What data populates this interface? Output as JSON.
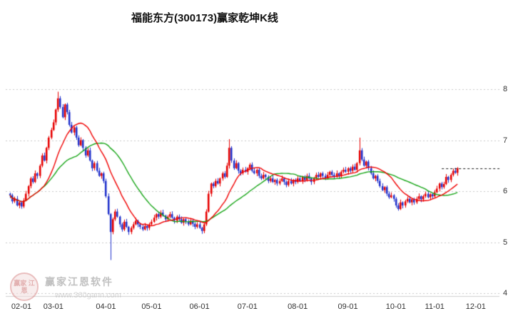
{
  "title": "福能东方(300173)赢家乾坤K线",
  "watermark": {
    "logo_text": "赢家 江恩",
    "brand": "赢家江恩软件",
    "url": "www.360gann.com"
  },
  "chart_data": {
    "type": "candlestick",
    "title": "福能东方(300173)赢家乾坤K线",
    "symbol": "福能东方",
    "code": "300173",
    "legend_position": "none",
    "grid": "horizontal-dotted",
    "y_axis": {
      "ticks": [
        8,
        7,
        6,
        5,
        4
      ],
      "range": [
        4,
        8.8
      ],
      "side": "right"
    },
    "x_axis": {
      "ticks": [
        {
          "label": "02-01",
          "i": 0
        },
        {
          "label": "03-01",
          "i": 19
        },
        {
          "label": "04-01",
          "i": 42
        },
        {
          "label": "05-01",
          "i": 62
        },
        {
          "label": "06-01",
          "i": 83
        },
        {
          "label": "07-01",
          "i": 104
        },
        {
          "label": "08-01",
          "i": 126
        },
        {
          "label": "09-01",
          "i": 148
        },
        {
          "label": "10-01",
          "i": 169
        },
        {
          "label": "11-01",
          "i": 186
        },
        {
          "label": "12-01",
          "i": 204
        }
      ]
    },
    "first_open": 5.95,
    "closes": [
      5.92,
      5.8,
      5.85,
      5.72,
      5.78,
      5.7,
      5.82,
      5.95,
      6.1,
      6.25,
      6.18,
      6.35,
      6.3,
      6.5,
      6.7,
      6.6,
      6.85,
      7.05,
      7.2,
      7.35,
      7.6,
      7.82,
      7.65,
      7.45,
      7.7,
      7.55,
      7.3,
      7.15,
      7.25,
      7.05,
      6.9,
      7.0,
      6.85,
      6.7,
      6.8,
      6.6,
      6.45,
      6.55,
      6.4,
      6.3,
      6.35,
      6.2,
      5.9,
      5.55,
      5.2,
      5.45,
      5.6,
      5.5,
      5.35,
      5.25,
      5.4,
      5.3,
      5.2,
      5.28,
      5.35,
      5.42,
      5.35,
      5.3,
      5.25,
      5.32,
      5.28,
      5.35,
      5.4,
      5.48,
      5.55,
      5.5,
      5.58,
      5.52,
      5.45,
      5.5,
      5.55,
      5.48,
      5.42,
      5.5,
      5.45,
      5.38,
      5.45,
      5.4,
      5.35,
      5.42,
      5.36,
      5.3,
      5.35,
      5.28,
      5.22,
      5.35,
      5.6,
      5.95,
      6.15,
      6.1,
      6.2,
      6.15,
      6.25,
      6.35,
      6.28,
      6.5,
      6.85,
      6.6,
      6.45,
      6.55,
      6.4,
      6.35,
      6.42,
      6.38,
      6.45,
      6.52,
      6.4,
      6.35,
      6.42,
      6.3,
      6.25,
      6.32,
      6.28,
      6.2,
      6.25,
      6.18,
      6.22,
      6.15,
      6.2,
      6.25,
      6.18,
      6.12,
      6.2,
      6.15,
      6.22,
      6.18,
      6.25,
      6.2,
      6.28,
      6.22,
      6.3,
      6.25,
      6.18,
      6.25,
      6.32,
      6.28,
      6.35,
      6.3,
      6.25,
      6.32,
      6.38,
      6.32,
      6.28,
      6.35,
      6.3,
      6.38,
      6.42,
      6.38,
      6.45,
      6.4,
      6.48,
      6.42,
      6.55,
      6.8,
      6.62,
      6.5,
      6.58,
      6.45,
      6.35,
      6.25,
      6.3,
      6.2,
      6.1,
      6.02,
      6.08,
      5.95,
      5.88,
      5.92,
      5.85,
      5.72,
      5.65,
      5.78,
      5.72,
      5.8,
      5.85,
      5.78,
      5.84,
      5.78,
      5.85,
      5.9,
      5.84,
      5.9,
      5.95,
      5.88,
      5.94,
      5.9,
      5.98,
      6.05,
      6.15,
      6.08,
      6.14,
      6.28,
      6.22,
      6.32,
      6.4,
      6.36,
      6.45
    ],
    "wick_overrides": {
      "21": {
        "high": 7.95
      },
      "44": {
        "low": 4.65
      },
      "96": {
        "high": 7.02
      },
      "153": {
        "high": 7.05
      }
    },
    "last_price_line": 6.45,
    "ma_lines": [
      {
        "name": "ma-slow-green",
        "window": 30,
        "color": "#17a517"
      },
      {
        "name": "ma-fast-red",
        "window": 15,
        "color": "#f00000"
      }
    ],
    "colors": {
      "up": "#e60000",
      "down": "#2233cc",
      "grid": "#c8c8c8",
      "axis": "#cfcfcf",
      "dashed": "#1a1a1a"
    }
  }
}
